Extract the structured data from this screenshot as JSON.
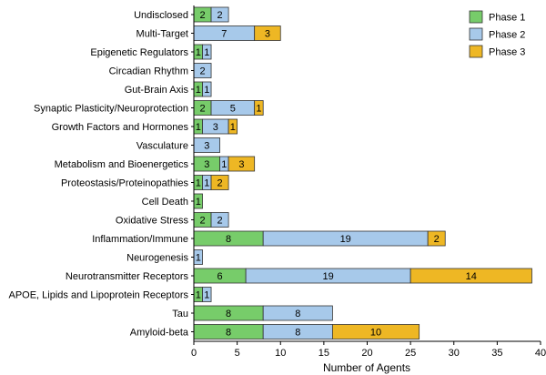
{
  "chart_data": {
    "type": "bar",
    "orientation": "horizontal",
    "stacked": true,
    "title": "",
    "xlabel": "Number of Agents",
    "ylabel": "",
    "xlim": [
      0,
      40
    ],
    "xticks": [
      0,
      5,
      10,
      15,
      20,
      25,
      30,
      35,
      40
    ],
    "grid": false,
    "legend_position": "top-right",
    "categories": [
      "Undisclosed",
      "Multi-Target",
      "Epigenetic Regulators",
      "Circadian Rhythm",
      "Gut-Brain Axis",
      "Synaptic Plasticity/Neuroprotection",
      "Growth Factors and Hormones",
      "Vasculature",
      "Metabolism and Bioenergetics",
      "Proteostasis/Proteinopathies",
      "Cell Death",
      "Oxidative Stress",
      "Inflammation/Immune",
      "Neurogenesis",
      "Neurotransmitter Receptors",
      "APOE, Lipids and Lipoprotein Receptors",
      "Tau",
      "Amyloid-beta"
    ],
    "series": [
      {
        "name": "Phase 1",
        "color": "#77cc6a",
        "values": [
          2,
          0,
          1,
          0,
          1,
          2,
          1,
          0,
          3,
          1,
          1,
          2,
          8,
          0,
          6,
          1,
          8,
          8
        ]
      },
      {
        "name": "Phase 2",
        "color": "#a7c9ea",
        "values": [
          2,
          7,
          1,
          2,
          1,
          5,
          3,
          3,
          1,
          1,
          0,
          2,
          19,
          1,
          19,
          1,
          8,
          8
        ]
      },
      {
        "name": "Phase 3",
        "color": "#eeb724",
        "values": [
          0,
          3,
          0,
          0,
          0,
          1,
          1,
          0,
          3,
          2,
          0,
          0,
          2,
          0,
          14,
          0,
          0,
          10
        ]
      }
    ]
  }
}
